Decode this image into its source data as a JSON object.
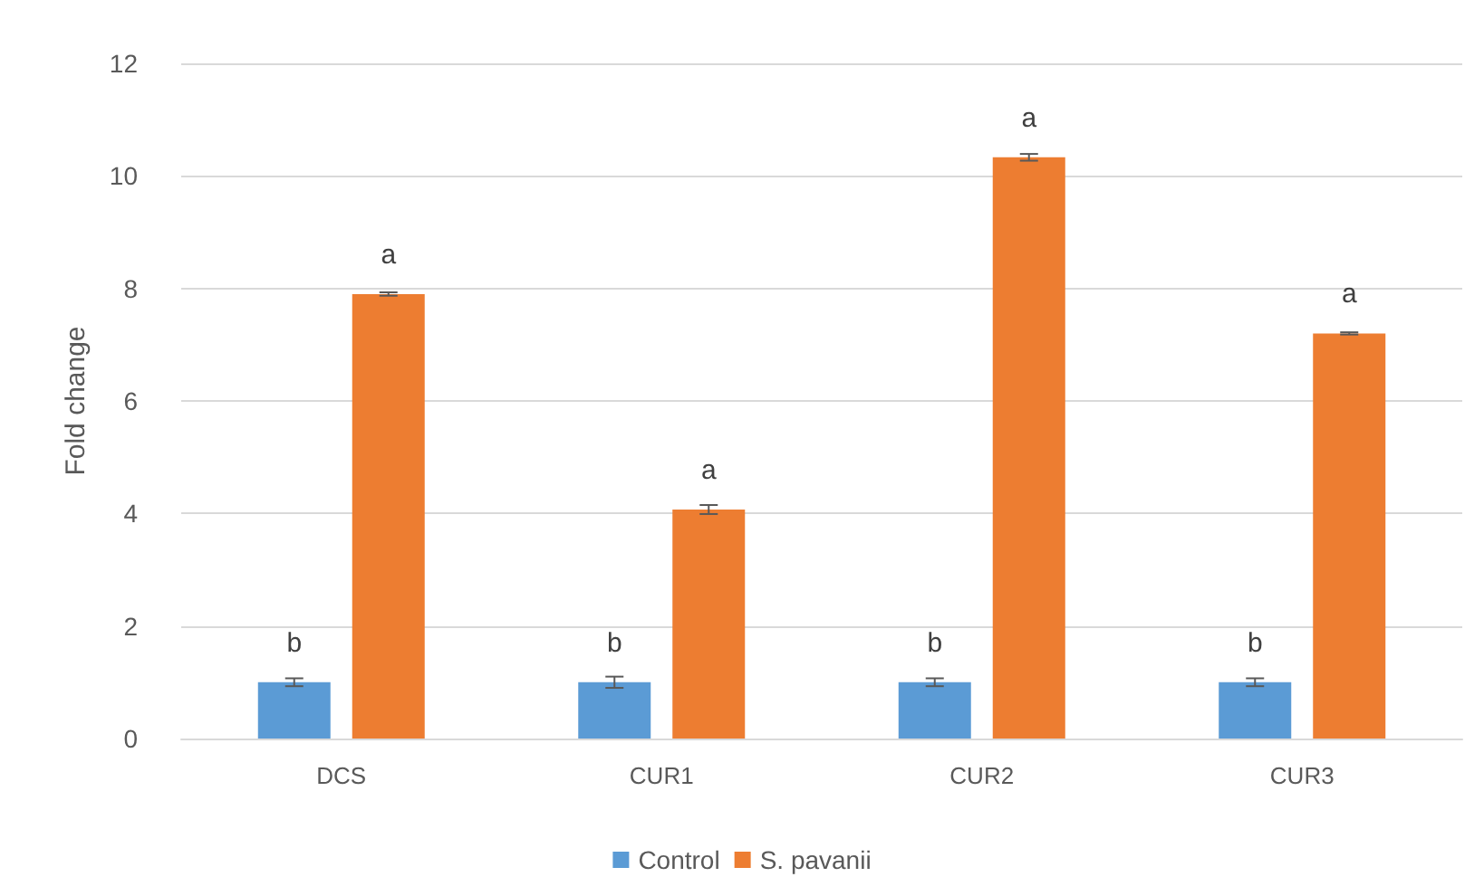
{
  "chart_data": {
    "type": "bar",
    "ylabel": "Fold change",
    "categories": [
      "DCS",
      "CUR1",
      "CUR2",
      "CUR3"
    ],
    "series": [
      {
        "name": "Control",
        "color": "#5b9bd5",
        "values": [
          1.0,
          1.0,
          1.0,
          1.0
        ],
        "errors": [
          0.07,
          0.1,
          0.07,
          0.07
        ],
        "value_labels": [
          "b",
          "b",
          "b",
          "b"
        ]
      },
      {
        "name": "S. pavanii",
        "color": "#ed7d31",
        "values": [
          7.9,
          4.07,
          10.33,
          7.2
        ],
        "errors": [
          0.03,
          0.08,
          0.06,
          0.02
        ],
        "value_labels": [
          "a",
          "a",
          "a",
          "a"
        ]
      }
    ],
    "ylim": [
      0,
      12
    ],
    "yticks": [
      0,
      2,
      4,
      6,
      8,
      10,
      12
    ],
    "grid": "y",
    "legend": "bottom"
  }
}
